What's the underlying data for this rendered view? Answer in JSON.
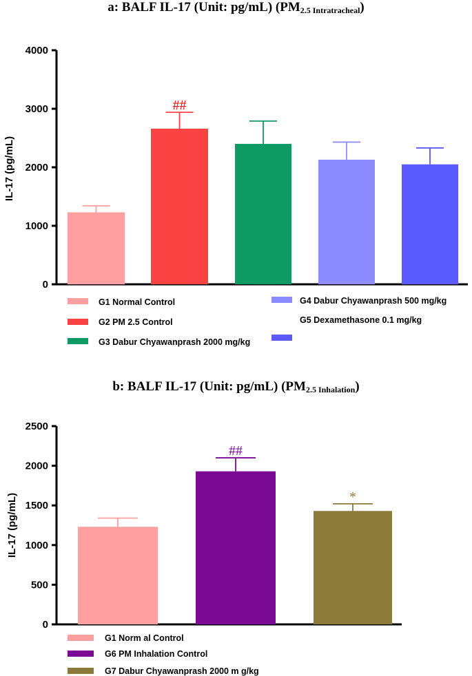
{
  "chart_data": [
    {
      "type": "bar",
      "title": "a: BALF IL-17 (Unit: pg/mL) (PM",
      "title_sub": "2.5 Intratracheal",
      "title_end": ")",
      "ylabel": "IL-17 (pg/mL)",
      "ylim": [
        0,
        4000
      ],
      "yticks": [
        0,
        1000,
        2000,
        3000,
        4000
      ],
      "categories": [
        "G1 Normal Control",
        "G2 PM 2.5 Control",
        "G3 Dabur Chyawanprash 2000 mg/kg",
        "G4 Dabur Chyawanprash 500 mg/kg",
        "G5 Dexamethasone 0.1 mg/kg"
      ],
      "values": [
        1230,
        2660,
        2400,
        2130,
        2050
      ],
      "errors": [
        110,
        280,
        390,
        300,
        280
      ],
      "colors": [
        "#ff9f9f",
        "#f94343",
        "#0e9a64",
        "#8c8cff",
        "#5a5aff"
      ],
      "annotations": [
        "",
        "##",
        "",
        "",
        ""
      ],
      "annotation_color": "#ff0000"
    },
    {
      "type": "bar",
      "title": "b: BALF IL-17 (Unit: pg/mL) (PM",
      "title_sub": "2.5 Inhalation",
      "title_end": ")",
      "ylabel": "IL-17 (pg/mL)",
      "ylim": [
        0,
        2500
      ],
      "yticks": [
        0,
        500,
        1000,
        1500,
        2000,
        2500
      ],
      "categories": [
        "G1 Norm al Control",
        "G6 PM Inhalation Control",
        "G7 Dabur Chyawanprash 2000 m g/kg"
      ],
      "values": [
        1230,
        1930,
        1430
      ],
      "errors": [
        110,
        170,
        90
      ],
      "colors": [
        "#ff9f9f",
        "#7a0a94",
        "#8b7a3a"
      ],
      "annotations": [
        "",
        "##",
        "*"
      ],
      "annotation_colors": [
        "#000000",
        "#7a0a94",
        "#8b7a3a"
      ]
    }
  ]
}
